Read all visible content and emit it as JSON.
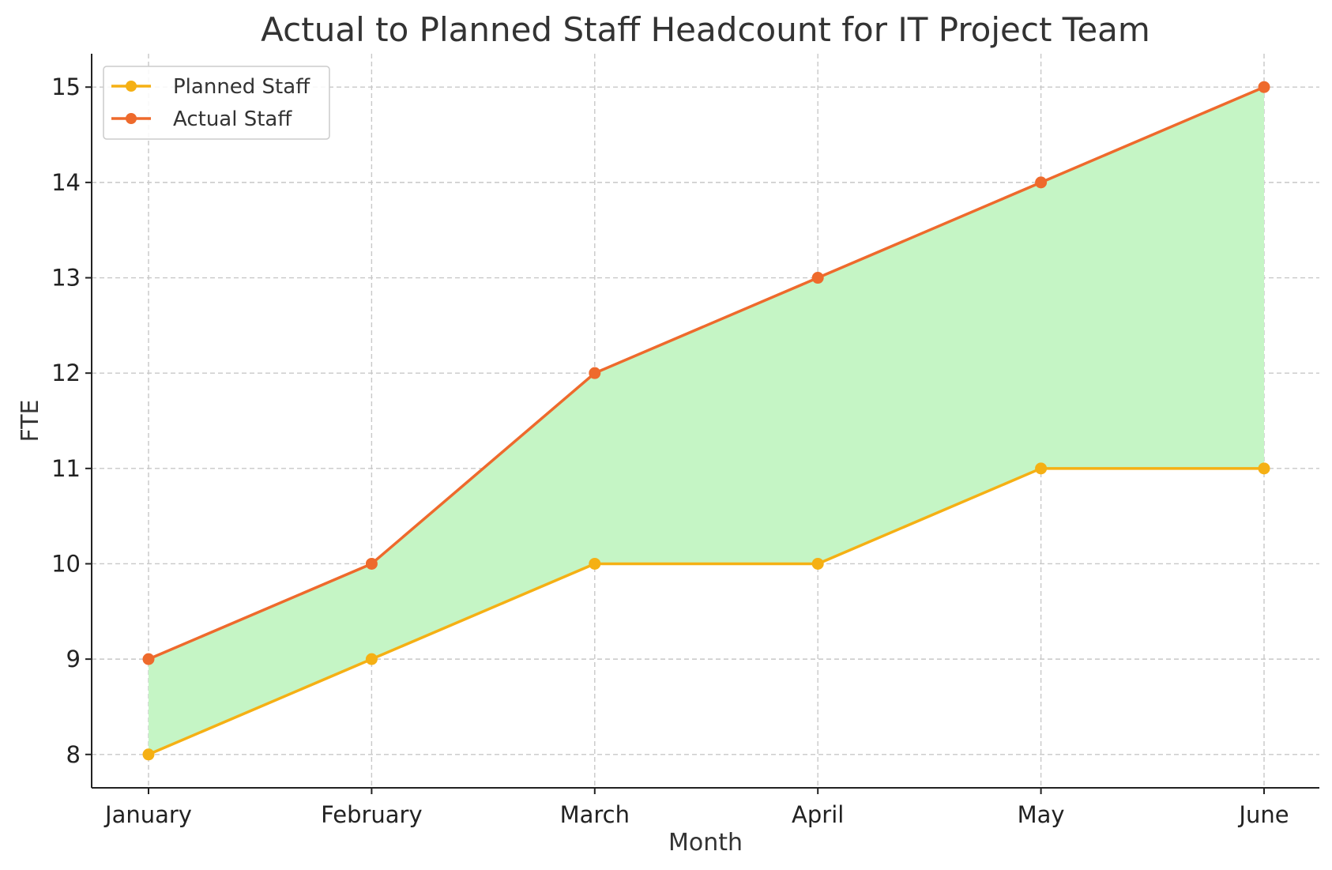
{
  "chart_data": {
    "type": "line",
    "title": "Actual to Planned Staff Headcount for IT Project Team",
    "xlabel": "Month",
    "ylabel": "FTE",
    "categories": [
      "January",
      "February",
      "March",
      "April",
      "May",
      "June"
    ],
    "series": [
      {
        "name": "Planned Staff",
        "values": [
          8,
          9,
          10,
          10,
          11,
          11
        ],
        "color": "#F5B014"
      },
      {
        "name": "Actual Staff",
        "values": [
          9,
          10,
          12,
          13,
          14,
          15
        ],
        "color": "#EE6A2C"
      }
    ],
    "fill_between": {
      "color": "#C5F5C5"
    },
    "ylim": [
      7.65,
      15.35
    ],
    "yticks": [
      8,
      9,
      10,
      11,
      12,
      13,
      14,
      15
    ],
    "grid": true,
    "legend_position": "top-left"
  }
}
